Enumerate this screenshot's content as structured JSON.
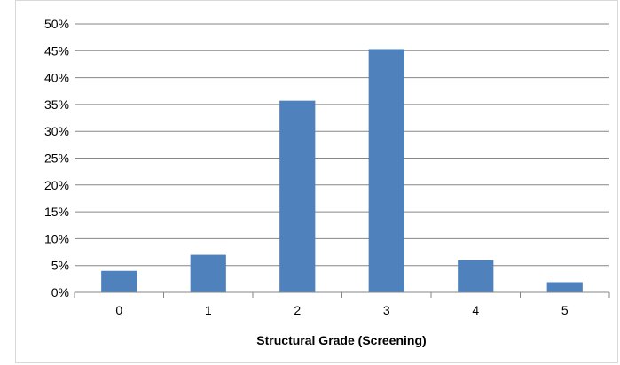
{
  "chart_data": {
    "type": "bar",
    "categories": [
      "0",
      "1",
      "2",
      "3",
      "4",
      "5"
    ],
    "values": [
      4,
      7,
      35.7,
      45.3,
      6,
      1.9
    ],
    "value_unit": "%",
    "title": "",
    "xlabel": "Structural Grade (Screening)",
    "ylabel": "",
    "ylim": [
      0,
      50
    ],
    "yticks": [
      "0%",
      "5%",
      "10%",
      "15%",
      "20%",
      "25%",
      "30%",
      "35%",
      "40%",
      "45%",
      "50%"
    ],
    "grid": true,
    "legend": "none",
    "bar_color": "#4f81bd",
    "grid_color": "#868686"
  }
}
